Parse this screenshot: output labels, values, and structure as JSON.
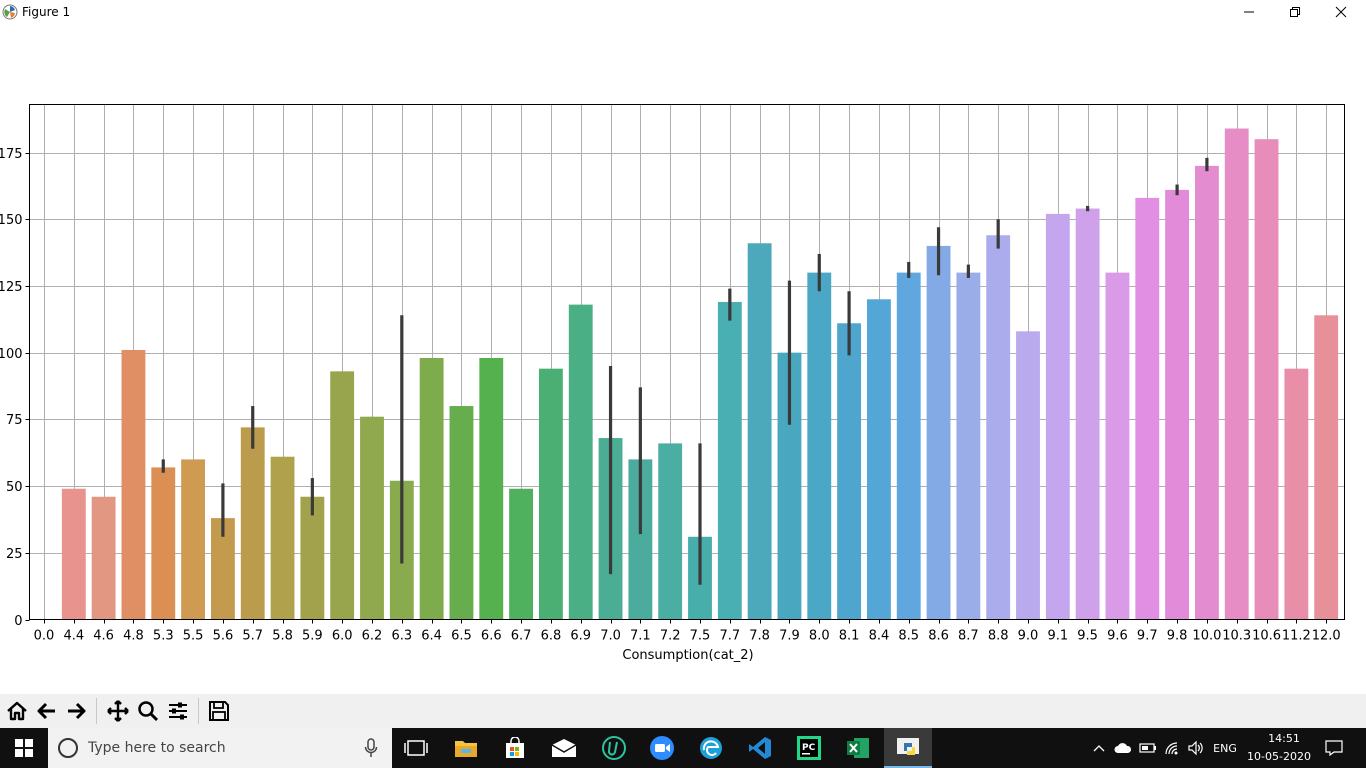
{
  "window": {
    "title": "Figure 1",
    "icons": {
      "app": "matplotlib-icon",
      "minimize": "minimize-icon",
      "maximize": "restore-icon",
      "close": "close-icon"
    }
  },
  "chart_data": {
    "type": "bar",
    "xlabel": "Consumption(cat_2)",
    "ylabel": "",
    "grid": true,
    "ylim": [
      0,
      193
    ],
    "yticks": [
      0,
      25,
      50,
      75,
      100,
      125,
      150,
      175
    ],
    "ytick_labels": [
      "0",
      "25",
      "50",
      "75",
      "100",
      "125",
      "150",
      "175"
    ],
    "categories": [
      "0.0",
      "4.4",
      "4.6",
      "4.8",
      "5.3",
      "5.5",
      "5.6",
      "5.7",
      "5.8",
      "5.9",
      "6.0",
      "6.2",
      "6.3",
      "6.4",
      "6.5",
      "6.6",
      "6.7",
      "6.8",
      "6.9",
      "7.0",
      "7.1",
      "7.2",
      "7.5",
      "7.7",
      "7.8",
      "7.9",
      "8.0",
      "8.1",
      "8.4",
      "8.5",
      "8.6",
      "8.7",
      "8.8",
      "9.0",
      "9.1",
      "9.5",
      "9.6",
      "9.7",
      "9.8",
      "10.0",
      "10.3",
      "10.6",
      "11.2",
      "12.0"
    ],
    "values": [
      0,
      49,
      46,
      101,
      57,
      60,
      38,
      72,
      61,
      46,
      93,
      76,
      52,
      98,
      80,
      98,
      49,
      94,
      118,
      68,
      60,
      66,
      31,
      119,
      141,
      100,
      130,
      111,
      120,
      130,
      140,
      130,
      144,
      108,
      152,
      154,
      130,
      158,
      161,
      170,
      184,
      180,
      94,
      114
    ],
    "error_bars": [
      null,
      null,
      null,
      null,
      [
        55,
        60
      ],
      null,
      [
        31,
        51
      ],
      [
        64,
        80
      ],
      null,
      [
        39,
        53
      ],
      null,
      null,
      [
        21,
        114
      ],
      null,
      null,
      null,
      null,
      null,
      null,
      [
        17,
        95
      ],
      [
        32,
        87
      ],
      null,
      [
        13,
        66
      ],
      [
        112,
        124
      ],
      null,
      [
        73,
        127
      ],
      [
        123,
        137
      ],
      [
        99,
        123
      ],
      null,
      [
        128,
        134
      ],
      [
        129,
        147
      ],
      [
        128,
        133
      ],
      [
        139,
        150
      ],
      null,
      null,
      [
        153,
        155
      ],
      null,
      null,
      [
        159,
        163
      ],
      [
        168,
        173
      ],
      null,
      null,
      null,
      null
    ],
    "colors": [
      "#e8938e",
      "#e8938e",
      "#e29783",
      "#e08e63",
      "#dc8f52",
      "#cf9a52",
      "#c49a4e",
      "#bb9b4c",
      "#b0a14c",
      "#a3a24c",
      "#99a54d",
      "#90a84e",
      "#89ab4e",
      "#7eab4c",
      "#66ae4d",
      "#55b04e",
      "#4fb05d",
      "#4baf74",
      "#4baf86",
      "#4bae94",
      "#4bac9e",
      "#4aaea3",
      "#48aeab",
      "#4aafb2",
      "#4ca9bc",
      "#4aa7c0",
      "#4ba7c6",
      "#4ea5ce",
      "#54a6d6",
      "#60a7e0",
      "#84aae6",
      "#9aade8",
      "#aaaceb",
      "#b9aaee",
      "#c3a6ed",
      "#cfa1ea",
      "#d99be8",
      "#e18fe2",
      "#e28bd9",
      "#e38ccf",
      "#e78dc6",
      "#e88db9",
      "#e88ea8",
      "#e8909a"
    ],
    "error_color": "#3a3a3a"
  },
  "toolbar": {
    "buttons": [
      {
        "name": "home-button",
        "icon": "home-icon"
      },
      {
        "name": "back-button",
        "icon": "arrow-left-icon"
      },
      {
        "name": "forward-button",
        "icon": "arrow-right-icon"
      },
      {
        "name": "pan-button",
        "icon": "move-icon"
      },
      {
        "name": "zoom-button",
        "icon": "magnifier-icon"
      },
      {
        "name": "configure-button",
        "icon": "sliders-icon"
      },
      {
        "name": "save-button",
        "icon": "floppy-icon"
      }
    ]
  },
  "taskbar": {
    "search_placeholder": "Type here to search",
    "apps": [
      "task-view-icon",
      "file-explorer-icon",
      "store-icon",
      "mail-icon",
      "u-app-icon",
      "zoom-icon",
      "edge-icon",
      "vscode-icon",
      "pycharm-icon",
      "excel-icon",
      "python-icon"
    ],
    "language": "ENG",
    "time": "14:51",
    "date": "10-05-2020"
  }
}
